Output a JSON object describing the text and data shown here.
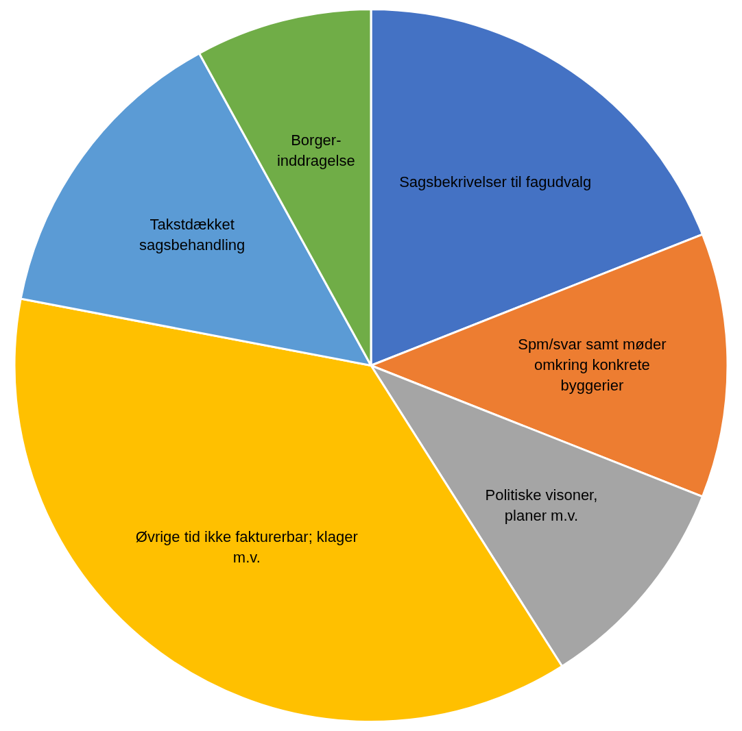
{
  "chart_data": {
    "type": "pie",
    "categories": [
      "Sagsbekrivelser til fagudvalg",
      "Spm/svar samt møder omkring konkrete byggerier",
      "Politiske visoner, planer m.v.",
      "Øvrige tid ikke fakturerbar; klager m.v.",
      "Takstdækket sagsbehandling",
      "Borger-inddragelse"
    ],
    "values": [
      19,
      12,
      10,
      37,
      14,
      8
    ],
    "colors": [
      "#4472c4",
      "#ed7d31",
      "#a5a5a5",
      "#ffc000",
      "#5b9bd5",
      "#70ad47"
    ],
    "legend": false
  }
}
